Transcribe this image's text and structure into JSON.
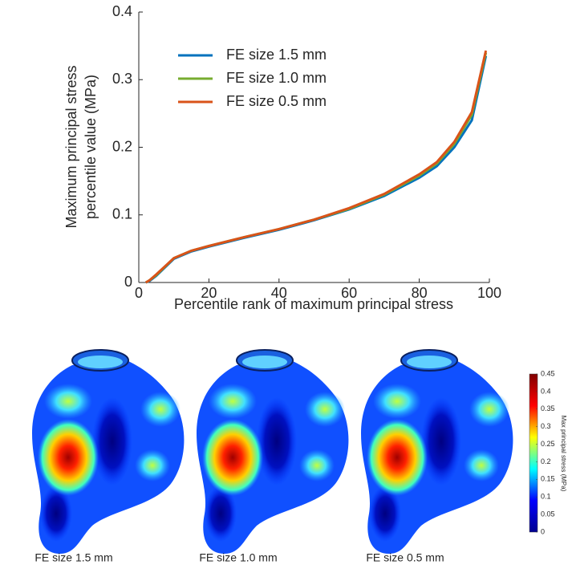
{
  "chart_data": [
    {
      "type": "line",
      "x_label": "Percentile rank of maximum principal stress",
      "y_label": [
        "Maximum principal stress",
        "percentile value (MPa)"
      ],
      "x": [
        2,
        3,
        5,
        10,
        15,
        20,
        30,
        40,
        50,
        60,
        70,
        80,
        85,
        90,
        95,
        99
      ],
      "series": [
        {
          "name": "FE size 1.5 mm",
          "color": "#0072bd",
          "values": [
            0,
            0.002,
            0.01,
            0.035,
            0.046,
            0.053,
            0.066,
            0.078,
            0.092,
            0.108,
            0.128,
            0.155,
            0.172,
            0.2,
            0.24,
            0.335
          ]
        },
        {
          "name": "FE size 1.0 mm",
          "color": "#77ac30",
          "values": [
            0,
            0.003,
            0.011,
            0.036,
            0.047,
            0.054,
            0.067,
            0.079,
            0.093,
            0.109,
            0.13,
            0.158,
            0.176,
            0.205,
            0.248,
            0.34
          ]
        },
        {
          "name": "FE size 0.5 mm",
          "color": "#d95319",
          "values": [
            0,
            0.003,
            0.012,
            0.036,
            0.047,
            0.054,
            0.067,
            0.079,
            0.093,
            0.11,
            0.131,
            0.16,
            0.178,
            0.208,
            0.252,
            0.343
          ]
        }
      ],
      "xlim": [
        0,
        100
      ],
      "xticks": [
        0,
        20,
        40,
        60,
        80,
        100
      ],
      "ylim": [
        0,
        0.4
      ],
      "yticks": [
        0,
        0.1,
        0.2,
        0.3,
        0.4
      ],
      "legend": "upper left"
    },
    {
      "type": "colorbar",
      "label": "Max principal stress (MPa)",
      "ylim": [
        0,
        0.45
      ],
      "yticks": [
        0,
        0.05,
        0.1,
        0.15,
        0.2,
        0.25,
        0.3,
        0.35,
        0.4,
        0.45
      ],
      "colors": [
        "#00008f",
        "#0000ff",
        "#00ffff",
        "#ffff00",
        "#ff0000",
        "#800000"
      ]
    }
  ],
  "images": [
    {
      "caption": "FE size 1.5 mm"
    },
    {
      "caption": "FE size 1.0 mm"
    },
    {
      "caption": "FE size 0.5 mm"
    }
  ]
}
